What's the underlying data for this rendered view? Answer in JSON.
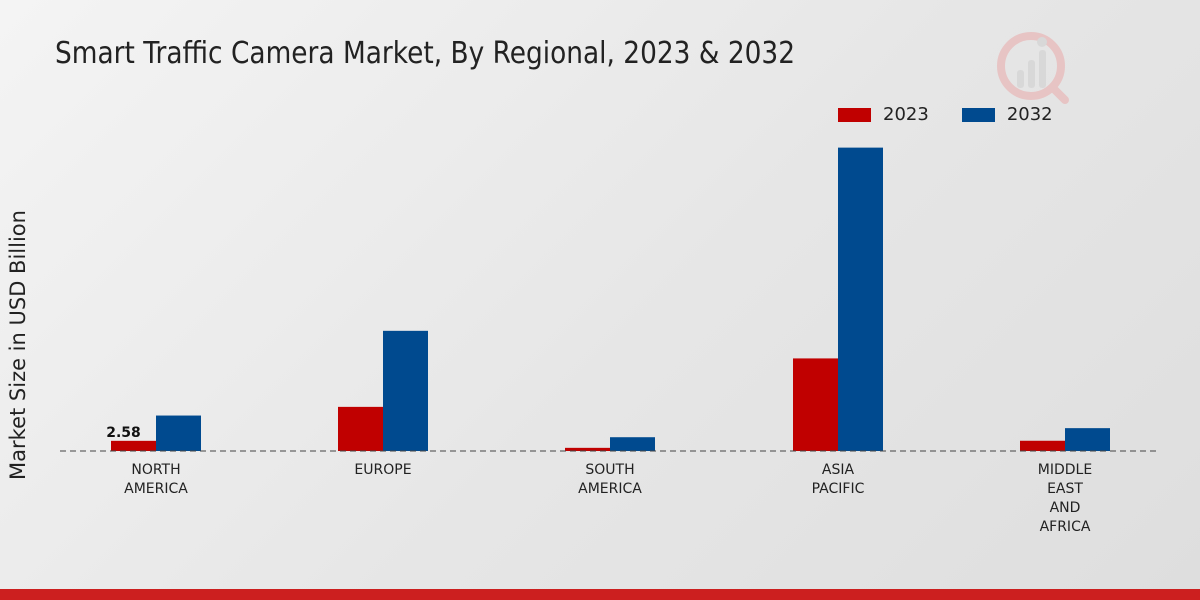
{
  "title": "Smart Traffic Camera Market, By Regional, 2023 & 2032",
  "colors": {
    "2023": "#c00000",
    "2032": "#004a8f",
    "footer": "#cc1f1f"
  },
  "chart_data": {
    "type": "bar",
    "title": "Smart Traffic Camera Market, By Regional, 2023 & 2032",
    "xlabel": "",
    "ylabel": "Market Size in USD Billion",
    "categories": [
      [
        "NORTH",
        "AMERICA"
      ],
      [
        "EUROPE"
      ],
      [
        "SOUTH",
        "AMERICA"
      ],
      [
        "ASIA",
        "PACIFIC"
      ],
      [
        "MIDDLE",
        "EAST",
        "AND",
        "AFRICA"
      ]
    ],
    "series": [
      {
        "name": "2023",
        "values": [
          2.58,
          11.2,
          0.8,
          23.5,
          2.6
        ]
      },
      {
        "name": "2032",
        "values": [
          9.0,
          30.5,
          3.5,
          77.0,
          5.8
        ]
      }
    ],
    "data_labels": [
      {
        "series": 0,
        "index": 0,
        "text": "2.58"
      }
    ],
    "ylim": [
      0,
      100
    ],
    "legend": "top-right",
    "grid": false
  }
}
